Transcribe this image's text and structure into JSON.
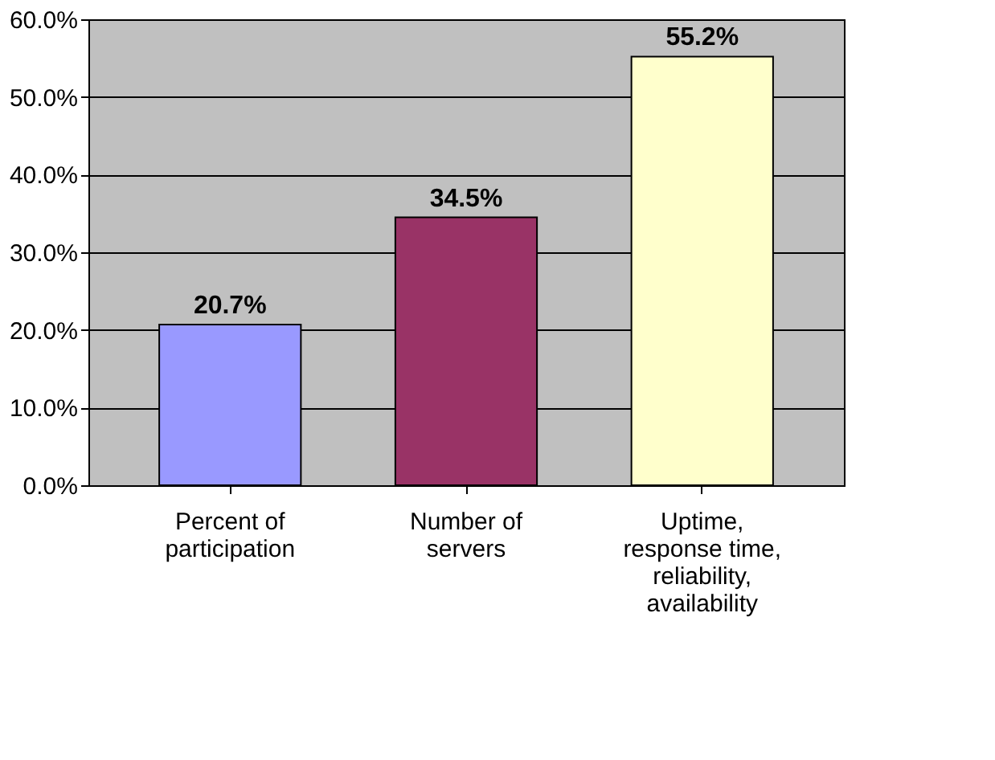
{
  "chart_data": {
    "type": "bar",
    "categories": [
      "Percent of\nparticipation",
      "Number of\nservers",
      "Uptime,\nresponse time,\nreliability,\navailability"
    ],
    "values": [
      20.7,
      34.5,
      55.2
    ],
    "colors": [
      "#9999ff",
      "#993366",
      "#ffffcc"
    ],
    "value_labels": [
      "20.7%",
      "34.5%",
      "55.2%"
    ],
    "ylim": [
      0,
      60
    ],
    "yticks": [
      {
        "value": 0,
        "label": "0.0%"
      },
      {
        "value": 10,
        "label": "10.0%"
      },
      {
        "value": 20,
        "label": "20.0%"
      },
      {
        "value": 30,
        "label": "30.0%"
      },
      {
        "value": 40,
        "label": "40.0%"
      },
      {
        "value": 50,
        "label": "50.0%"
      },
      {
        "value": 60,
        "label": "60.0%"
      }
    ],
    "grid": "y"
  }
}
